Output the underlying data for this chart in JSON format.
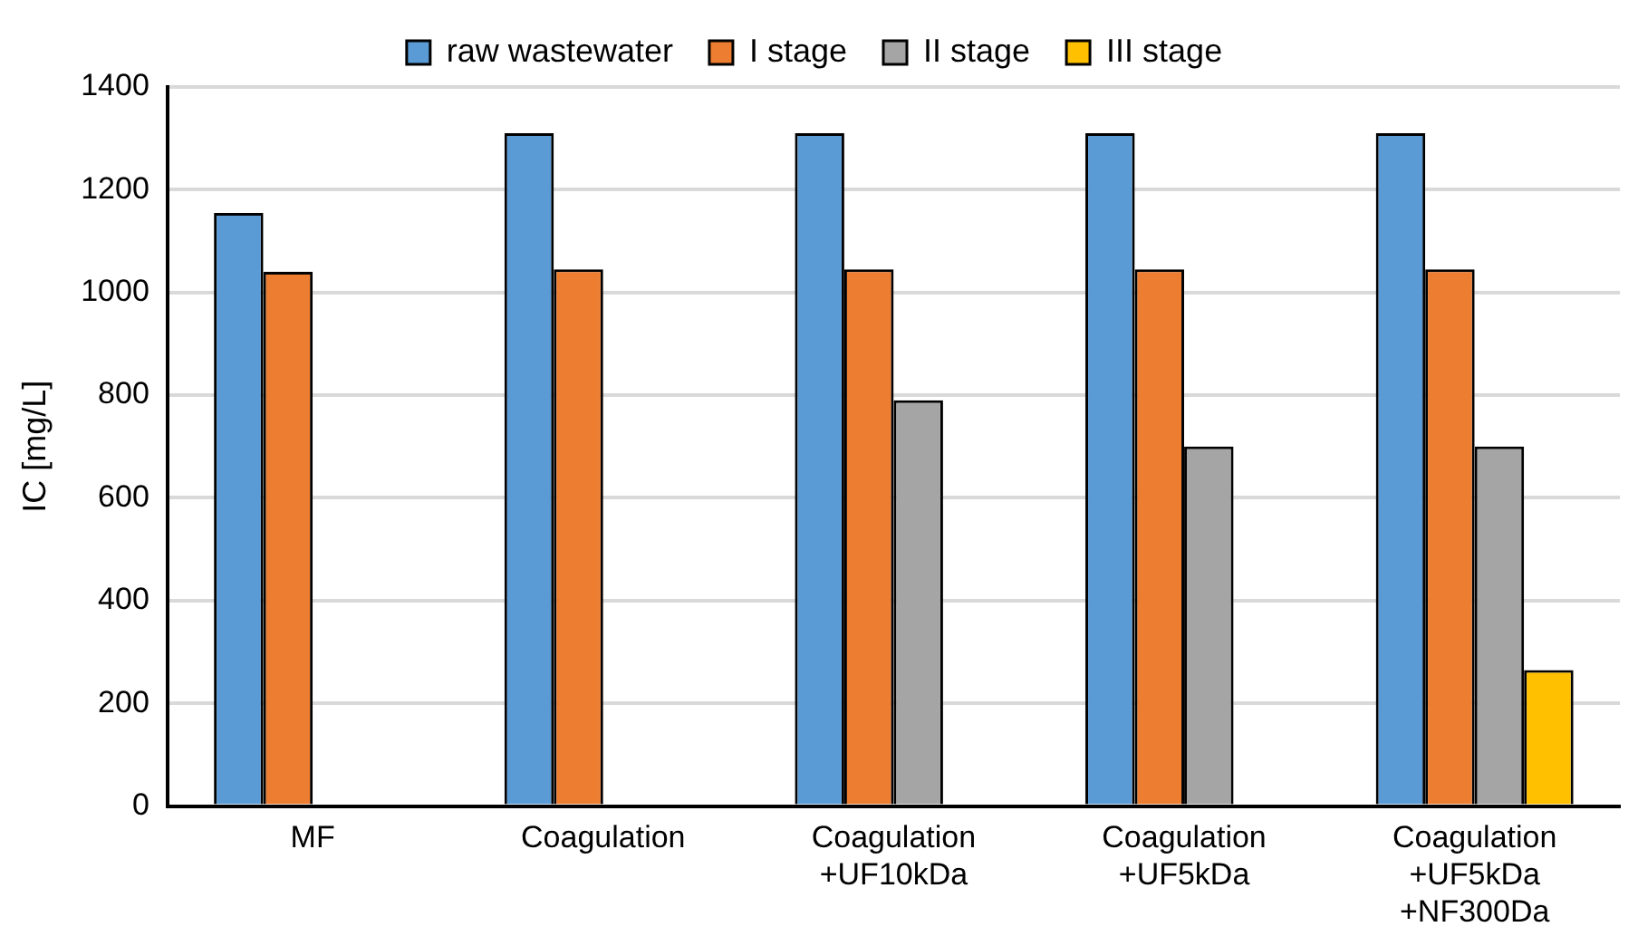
{
  "chart_data": {
    "type": "bar",
    "ylabel": "IC [mg/L]",
    "categories": [
      "MF",
      "Coagulation",
      "Coagulation\n+UF10kDa",
      "Coagulation\n+UF5kDa",
      "Coagulation\n+UF5kDa\n+NF300Da"
    ],
    "series": [
      {
        "name": "raw wastewater",
        "color": "#5b9bd5",
        "values": [
          1155,
          1310,
          1310,
          1310,
          1310
        ]
      },
      {
        "name": "I stage",
        "color": "#ed7d31",
        "values": [
          1040,
          1045,
          1045,
          1045,
          1045
        ]
      },
      {
        "name": "II stage",
        "color": "#a5a5a5",
        "values": [
          null,
          null,
          790,
          700,
          700
        ]
      },
      {
        "name": "III stage",
        "color": "#ffc000",
        "values": [
          null,
          null,
          null,
          null,
          265
        ]
      }
    ],
    "ylim": [
      0,
      1400
    ],
    "yticks": [
      0,
      200,
      400,
      600,
      800,
      1000,
      1200,
      1400
    ],
    "grid": "y",
    "legend": "top"
  }
}
